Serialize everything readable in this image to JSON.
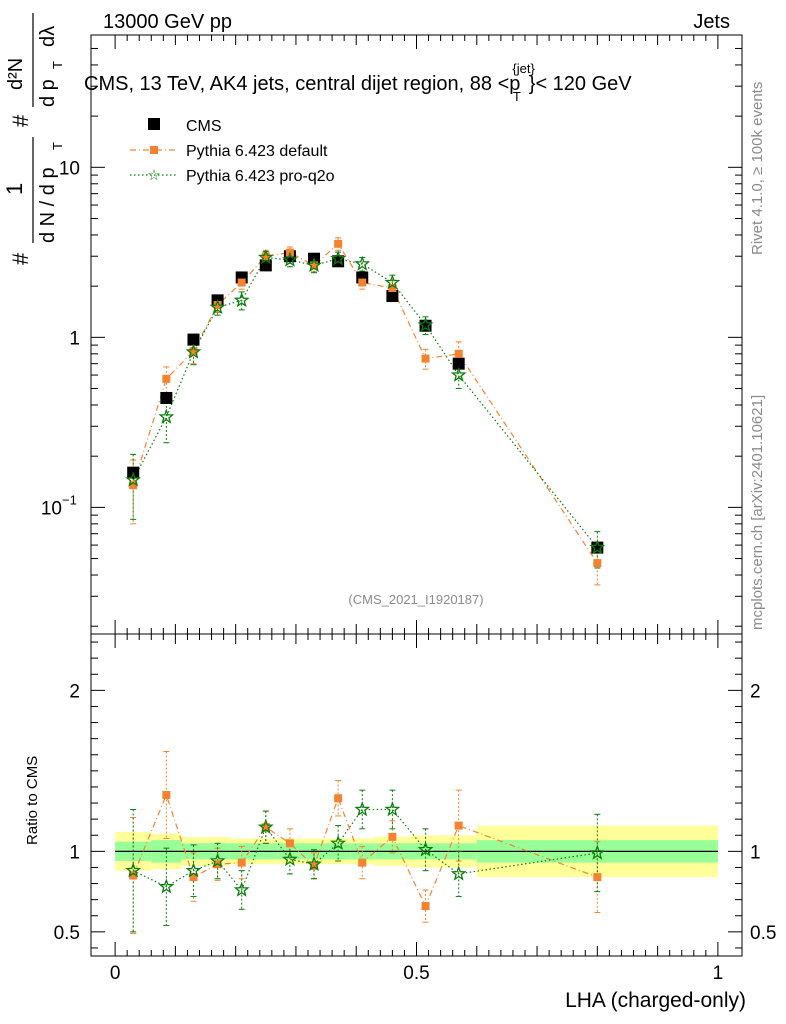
{
  "header": {
    "left": "13000 GeV pp",
    "right": "Jets"
  },
  "side_text": {
    "rivet": "Rivet 4.1.0, ≥ 100k events",
    "mcplots": "mcplots.cern.ch [arXiv:2401.10621]"
  },
  "plot_title": {
    "main": "CMS, 13 TeV, AK4 jets, central dijet region, 88 <p",
    "sup": "{jet}",
    "sub": "T",
    "tail": "}< 120 GeV"
  },
  "analysis_id": "(CMS_2021_I1920187)",
  "y_label": {
    "hash1": "#",
    "one": "1",
    "dN": "d N / d p",
    "T1": "T",
    "hash2": "#",
    "d2N": "d²N",
    "dp": "d p",
    "T2": "T",
    "dlambda": "dλ"
  },
  "colors": {
    "data": "#000000",
    "default": "#f58231",
    "proq2o": "#0a7d0a",
    "band_inner": "#98ff98",
    "band_outer": "#ffff99"
  },
  "chart_data": [
    {
      "type": "scatter",
      "scale": "log",
      "title": "CMS, 13 TeV, AK4 jets, central dijet region, 88 <p_T^{jet}< 120 GeV",
      "xlabel": "LHA (charged-only)",
      "ylabel": "1/dN/dp_T d²N/(dp_T dλ)",
      "xlim": [
        -0.04,
        1.04
      ],
      "ylim": [
        0.018,
        60
      ],
      "y_ticks": [
        {
          "value": 0.1,
          "base": "10",
          "exp": "−1"
        },
        {
          "value": 1,
          "base": "1",
          "exp": ""
        },
        {
          "value": 10,
          "base": "10",
          "exp": ""
        }
      ],
      "legend": [
        {
          "key": "data",
          "label": "CMS"
        },
        {
          "key": "default",
          "label": "Pythia 6.423 default"
        },
        {
          "key": "proq2o",
          "label": "Pythia 6.423 pro-q2o"
        }
      ],
      "bins": [
        [
          0.0,
          0.06
        ],
        [
          0.06,
          0.11
        ],
        [
          0.11,
          0.15
        ],
        [
          0.15,
          0.19
        ],
        [
          0.19,
          0.23
        ],
        [
          0.23,
          0.27
        ],
        [
          0.27,
          0.31
        ],
        [
          0.31,
          0.35
        ],
        [
          0.35,
          0.39
        ],
        [
          0.39,
          0.43
        ],
        [
          0.43,
          0.49
        ],
        [
          0.49,
          0.54
        ],
        [
          0.54,
          0.6
        ],
        [
          0.6,
          1.0
        ]
      ],
      "series": [
        {
          "name": "CMS",
          "key": "data",
          "x": [
            0.03,
            0.085,
            0.13,
            0.17,
            0.21,
            0.25,
            0.29,
            0.33,
            0.37,
            0.41,
            0.46,
            0.515,
            0.57,
            0.8
          ],
          "y": [
            0.16,
            0.44,
            0.97,
            1.65,
            2.25,
            2.65,
            3.0,
            2.9,
            2.8,
            2.25,
            1.75,
            1.17,
            0.7,
            0.058
          ]
        },
        {
          "name": "Pythia 6.423 default",
          "key": "default",
          "x": [
            0.03,
            0.085,
            0.13,
            0.17,
            0.21,
            0.25,
            0.29,
            0.33,
            0.37,
            0.41,
            0.46,
            0.515,
            0.57,
            0.8
          ],
          "y": [
            0.135,
            0.57,
            0.83,
            1.55,
            2.1,
            3.0,
            3.15,
            2.65,
            3.55,
            2.1,
            1.95,
            0.75,
            0.8,
            0.047
          ],
          "err": [
            0.055,
            0.1,
            0.13,
            0.15,
            0.18,
            0.25,
            0.25,
            0.22,
            0.3,
            0.18,
            0.2,
            0.1,
            0.14,
            0.012
          ]
        },
        {
          "name": "Pythia 6.423 pro-q2o",
          "key": "proq2o",
          "x": [
            0.03,
            0.085,
            0.13,
            0.17,
            0.21,
            0.25,
            0.29,
            0.33,
            0.37,
            0.41,
            0.46,
            0.515,
            0.57,
            0.8
          ],
          "y": [
            0.145,
            0.34,
            0.82,
            1.5,
            1.65,
            2.95,
            2.85,
            2.65,
            2.9,
            2.7,
            2.1,
            1.18,
            0.6,
            0.058
          ],
          "err": [
            0.06,
            0.1,
            0.13,
            0.15,
            0.2,
            0.25,
            0.25,
            0.25,
            0.27,
            0.25,
            0.22,
            0.14,
            0.1,
            0.014
          ]
        }
      ]
    },
    {
      "type": "scatter",
      "title": "Ratio to CMS",
      "xlabel": "LHA (charged-only)",
      "ylabel": "Ratio to CMS",
      "xlim": [
        -0.04,
        1.04
      ],
      "ylim": [
        0.35,
        2.35
      ],
      "x_ticks": [
        "0",
        "0.5",
        "1"
      ],
      "y_ticks": [
        "0.5",
        "1",
        "2"
      ],
      "band_inner": [
        0.06,
        0.07,
        0.05,
        0.05,
        0.05,
        0.05,
        0.05,
        0.05,
        0.05,
        0.05,
        0.05,
        0.05,
        0.05,
        0.07
      ],
      "band_outer": [
        0.12,
        0.11,
        0.09,
        0.09,
        0.08,
        0.08,
        0.08,
        0.08,
        0.08,
        0.08,
        0.09,
        0.1,
        0.1,
        0.16
      ],
      "series": [
        {
          "name": "Pythia 6.423 default",
          "key": "default",
          "x": [
            0.03,
            0.085,
            0.13,
            0.17,
            0.21,
            0.25,
            0.29,
            0.33,
            0.37,
            0.41,
            0.46,
            0.515,
            0.57,
            0.8
          ],
          "y": [
            0.85,
            1.35,
            0.84,
            0.92,
            0.93,
            1.15,
            1.05,
            0.91,
            1.33,
            0.93,
            1.09,
            0.66,
            1.16,
            0.84
          ],
          "err": [
            0.36,
            0.27,
            0.15,
            0.1,
            0.1,
            0.1,
            0.09,
            0.08,
            0.11,
            0.1,
            0.1,
            0.1,
            0.22,
            0.22
          ]
        },
        {
          "name": "Pythia 6.423 pro-q2o",
          "key": "proq2o",
          "x": [
            0.03,
            0.085,
            0.13,
            0.17,
            0.21,
            0.25,
            0.29,
            0.33,
            0.37,
            0.41,
            0.46,
            0.515,
            0.57,
            0.8
          ],
          "y": [
            0.88,
            0.78,
            0.88,
            0.94,
            0.76,
            1.15,
            0.95,
            0.92,
            1.05,
            1.26,
            1.26,
            1.01,
            0.86,
            0.99
          ],
          "err": [
            0.38,
            0.24,
            0.16,
            0.11,
            0.12,
            0.1,
            0.09,
            0.09,
            0.11,
            0.12,
            0.12,
            0.13,
            0.14,
            0.24
          ]
        }
      ]
    }
  ]
}
